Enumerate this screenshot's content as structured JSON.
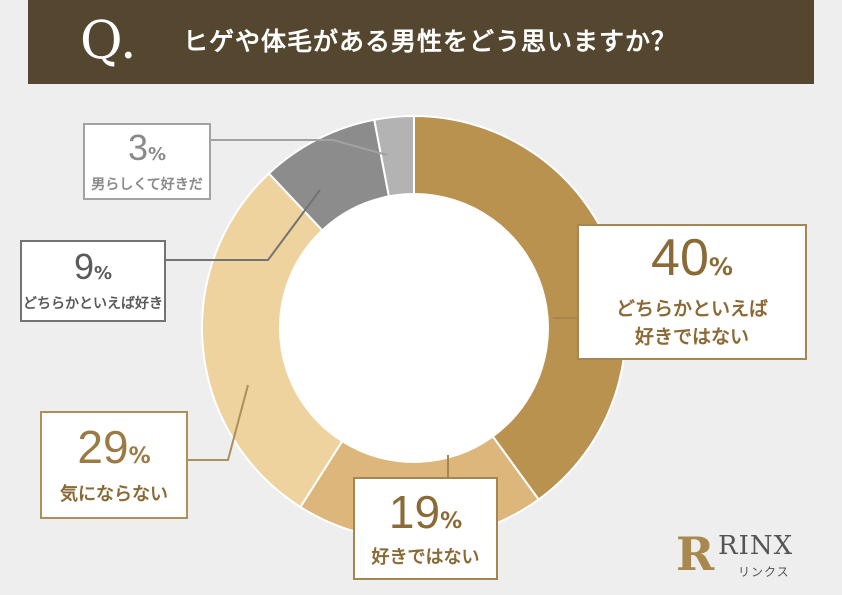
{
  "header": {
    "q_mark": "Q.",
    "question": "ヒゲや体毛がある男性をどう思いますか？"
  },
  "chart_data": {
    "type": "pie",
    "title": "ヒゲや体毛がある男性をどう思いますか？",
    "unit": "%",
    "slices": [
      {
        "label": "どちらかといえば\n好きではない",
        "value": 40,
        "color": "#b9924f"
      },
      {
        "label": "好きではない",
        "value": 19,
        "color": "#dcb67a"
      },
      {
        "label": "気にならない",
        "value": 29,
        "color": "#eed39e"
      },
      {
        "label": "どちらかといえば好き",
        "value": 9,
        "color": "#8c8c8c"
      },
      {
        "label": "男らしくて好きだ",
        "value": 3,
        "color": "#b3b3b3"
      }
    ]
  },
  "labels": [
    {
      "value": "40",
      "unit": "%",
      "text": "どちらかといえば\n好きではない"
    },
    {
      "value": "19",
      "unit": "%",
      "text": "好きではない"
    },
    {
      "value": "29",
      "unit": "%",
      "text": "気にならない"
    },
    {
      "value": "9",
      "unit": "%",
      "text": "どちらかといえば好き"
    },
    {
      "value": "3",
      "unit": "%",
      "text": "男らしくて好きだ"
    }
  ],
  "logo": {
    "badge": "R",
    "name": "RINX",
    "kana": "リンクス"
  }
}
